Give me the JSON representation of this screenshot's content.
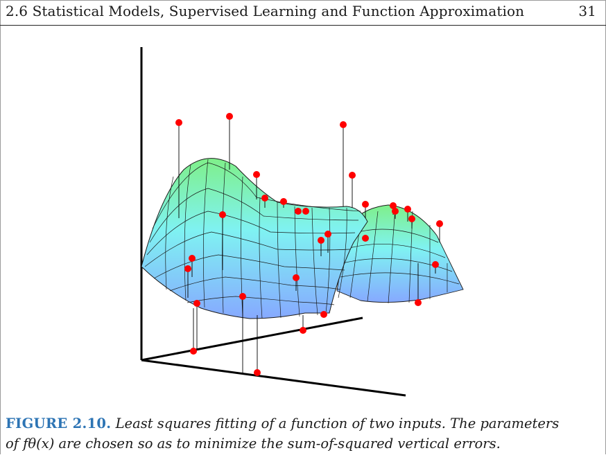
{
  "header": {
    "section_title": "2.6 Statistical Models, Supervised Learning and Function Approximation",
    "page_number": "31"
  },
  "figure": {
    "label": "FIGURE 2.10.",
    "caption_line1": "Least squares fitting of a function of two inputs. The parameters",
    "caption_line2": "of fθ(x) are chosen so as to minimize the sum-of-squared vertical errors.",
    "colors": {
      "point": "#ff0000",
      "surface_high": "#7ff08a",
      "surface_mid": "#7ff2f2",
      "surface_low": "#86a9ff",
      "grid": "#1a1a1a"
    }
  }
}
